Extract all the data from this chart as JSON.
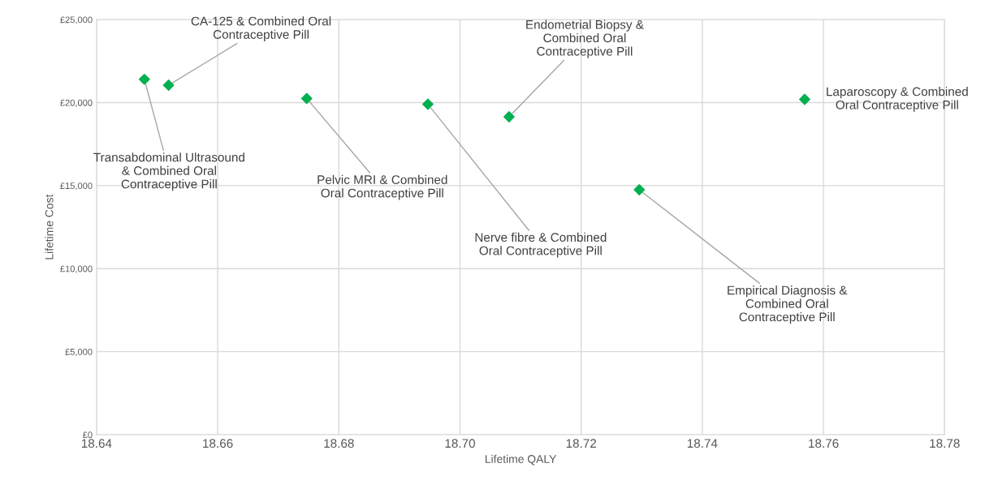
{
  "chart_data": {
    "type": "scatter",
    "xlabel": "Lifetime QALY",
    "ylabel": "Lifetime Cost",
    "x": [
      18.6479,
      18.6519,
      18.6747,
      18.6947,
      18.7081,
      18.7296,
      18.7569
    ],
    "series": [
      {
        "color": "#00b050",
        "values": [
          21400,
          21050,
          20250,
          19900,
          19150,
          14750,
          20200
        ]
      }
    ],
    "marker": "diamond",
    "grid": true,
    "xlim": [
      18.64,
      18.78
    ],
    "xticks": [
      {
        "value": 18.64,
        "label": "18.64"
      },
      {
        "value": 18.66,
        "label": "18.66"
      },
      {
        "value": 18.68,
        "label": "18.68"
      },
      {
        "value": 18.7,
        "label": "18.70"
      },
      {
        "value": 18.72,
        "label": "18.72"
      },
      {
        "value": 18.74,
        "label": "18.74"
      },
      {
        "value": 18.76,
        "label": "18.76"
      },
      {
        "value": 18.78,
        "label": "18.78"
      }
    ],
    "ylim": [
      0,
      25000
    ],
    "yticks": [
      {
        "value": 0,
        "label": "£0"
      },
      {
        "value": 5000,
        "label": "£5,000"
      },
      {
        "value": 10000,
        "label": "£10,000"
      },
      {
        "value": 15000,
        "label": "£15,000"
      },
      {
        "value": 20000,
        "label": "£20,000"
      },
      {
        "value": 25000,
        "label": "£25,000"
      }
    ],
    "annotations": [
      {
        "text": "Transabdominal Ultrasound\n& Combined Oral\nContraceptive Pill",
        "x": 18.6479,
        "y": 21400
      },
      {
        "text": "CA-125 & Combined Oral\nContraceptive Pill",
        "x": 18.6519,
        "y": 21050
      },
      {
        "text": "Pelvic MRI & Combined\nOral Contraceptive Pill",
        "x": 18.6747,
        "y": 20250
      },
      {
        "text": "Nerve fibre & Combined\nOral Contraceptive Pill",
        "x": 18.6947,
        "y": 19900
      },
      {
        "text": "Endometrial Biopsy &\nCombined Oral\nContraceptive Pill",
        "x": 18.7081,
        "y": 19150
      },
      {
        "text": "Empirical Diagnosis &\nCombined Oral\nContraceptive Pill",
        "x": 18.7296,
        "y": 14750
      },
      {
        "text": "Laparoscopy & Combined\nOral Contraceptive Pill",
        "x": 18.7569,
        "y": 20200
      }
    ]
  }
}
